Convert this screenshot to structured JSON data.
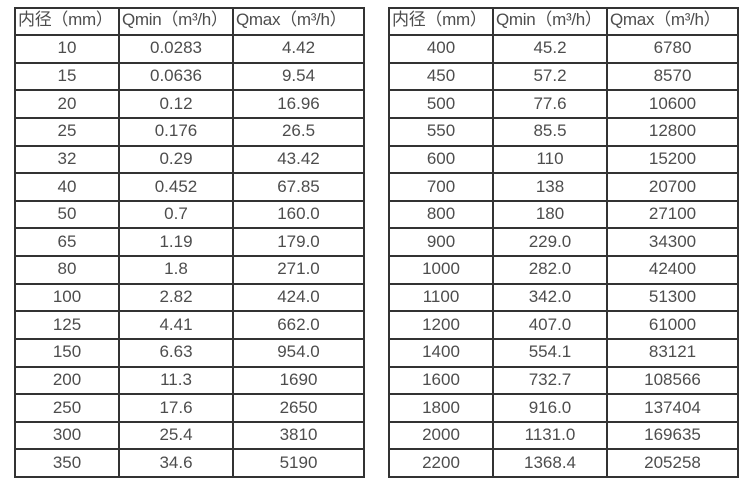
{
  "colors": {
    "background": "#ffffff",
    "border": "#333333",
    "text": "#4d4d4d"
  },
  "chart_data": [
    {
      "type": "table",
      "title": "",
      "headers": [
        "内径（mm）",
        "Qmin（m³/h）",
        "Qmax（m³/h）"
      ],
      "rows": [
        [
          "10",
          "0.0283",
          "4.42"
        ],
        [
          "15",
          "0.0636",
          "9.54"
        ],
        [
          "20",
          "0.12",
          "16.96"
        ],
        [
          "25",
          "0.176",
          "26.5"
        ],
        [
          "32",
          "0.29",
          "43.42"
        ],
        [
          "40",
          "0.452",
          "67.85"
        ],
        [
          "50",
          "0.7",
          "160.0"
        ],
        [
          "65",
          "1.19",
          "179.0"
        ],
        [
          "80",
          "1.8",
          "271.0"
        ],
        [
          "100",
          "2.82",
          "424.0"
        ],
        [
          "125",
          "4.41",
          "662.0"
        ],
        [
          "150",
          "6.63",
          "954.0"
        ],
        [
          "200",
          "11.3",
          "1690"
        ],
        [
          "250",
          "17.6",
          "2650"
        ],
        [
          "300",
          "25.4",
          "3810"
        ],
        [
          "350",
          "34.6",
          "5190"
        ]
      ]
    },
    {
      "type": "table",
      "title": "",
      "headers": [
        "内径（mm）",
        "Qmin（m³/h）",
        "Qmax（m³/h）"
      ],
      "rows": [
        [
          "400",
          "45.2",
          "6780"
        ],
        [
          "450",
          "57.2",
          "8570"
        ],
        [
          "500",
          "77.6",
          "10600"
        ],
        [
          "550",
          "85.5",
          "12800"
        ],
        [
          "600",
          "110",
          "15200"
        ],
        [
          "700",
          "138",
          "20700"
        ],
        [
          "800",
          "180",
          "27100"
        ],
        [
          "900",
          "229.0",
          "34300"
        ],
        [
          "1000",
          "282.0",
          "42400"
        ],
        [
          "1100",
          "342.0",
          "51300"
        ],
        [
          "1200",
          "407.0",
          "61000"
        ],
        [
          "1400",
          "554.1",
          "83121"
        ],
        [
          "1600",
          "732.7",
          "108566"
        ],
        [
          "1800",
          "916.0",
          "137404"
        ],
        [
          "2000",
          "1131.0",
          "169635"
        ],
        [
          "2200",
          "1368.4",
          "205258"
        ]
      ]
    }
  ]
}
